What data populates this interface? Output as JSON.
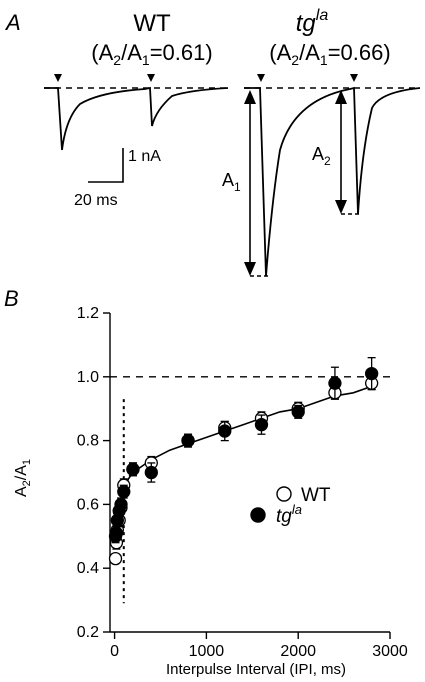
{
  "panel_a": {
    "label": "A",
    "wt_title": "WT",
    "wt_ratio": "(A2/A1=0.61)",
    "tg_title": "tgla",
    "tg_ratio": "(A2/A1=0.66)",
    "scale_current": "1 nA",
    "scale_time": "20 ms",
    "a1_label": "A1",
    "a2_label": "A2"
  },
  "chart_data": {
    "type": "scatter",
    "panel_label": "B",
    "title": "",
    "xlabel": "Interpulse Interval (IPI, ms)",
    "ylabel": "A2/A1",
    "xlim": [
      -50,
      3000
    ],
    "ylim": [
      0.2,
      1.2
    ],
    "xticks": [
      0,
      1000,
      2000,
      3000
    ],
    "yticks": [
      0.2,
      0.4,
      0.6,
      0.8,
      1.0,
      1.2
    ],
    "xtick_labels": [
      "0",
      "1000",
      "2000",
      "3000"
    ],
    "ytick_labels": [
      "0.2",
      "0.4",
      "0.6",
      "0.8",
      "1.0",
      "1.2"
    ],
    "reference_line_y": 1.0,
    "reference_line_x": 100,
    "legend_placement": "center-right",
    "series": [
      {
        "name": "WT",
        "marker": "open-circle",
        "x": [
          10,
          20,
          30,
          50,
          70,
          100,
          200,
          400,
          800,
          1200,
          1600,
          2000,
          2400,
          2800
        ],
        "y": [
          0.43,
          0.48,
          0.52,
          0.55,
          0.59,
          0.66,
          0.71,
          0.73,
          0.8,
          0.84,
          0.87,
          0.9,
          0.95,
          0.98
        ],
        "err": [
          0.015,
          0.02,
          0.02,
          0.02,
          0.02,
          0.02,
          0.02,
          0.02,
          0.02,
          0.02,
          0.02,
          0.02,
          0.02,
          0.02
        ]
      },
      {
        "name": "tgla",
        "marker": "filled-circle",
        "x": [
          10,
          20,
          30,
          50,
          70,
          100,
          200,
          400,
          800,
          1200,
          1600,
          2000,
          2400,
          2800
        ],
        "y": [
          0.5,
          0.51,
          0.55,
          0.58,
          0.6,
          0.64,
          0.71,
          0.7,
          0.8,
          0.83,
          0.85,
          0.89,
          0.98,
          1.01
        ],
        "err": [
          0.02,
          0.02,
          0.02,
          0.02,
          0.02,
          0.02,
          0.02,
          0.03,
          0.02,
          0.03,
          0.03,
          0.02,
          0.05,
          0.05
        ]
      }
    ],
    "fit_curve": {
      "x": [
        0,
        25,
        50,
        75,
        100,
        150,
        200,
        300,
        400,
        600,
        800,
        1000,
        1200,
        1400,
        1600,
        1800,
        2000,
        2200,
        2400,
        2600,
        2800
      ],
      "y": [
        0.46,
        0.52,
        0.57,
        0.61,
        0.64,
        0.68,
        0.7,
        0.72,
        0.74,
        0.77,
        0.79,
        0.81,
        0.83,
        0.85,
        0.87,
        0.89,
        0.9,
        0.92,
        0.94,
        0.95,
        0.97
      ]
    }
  }
}
